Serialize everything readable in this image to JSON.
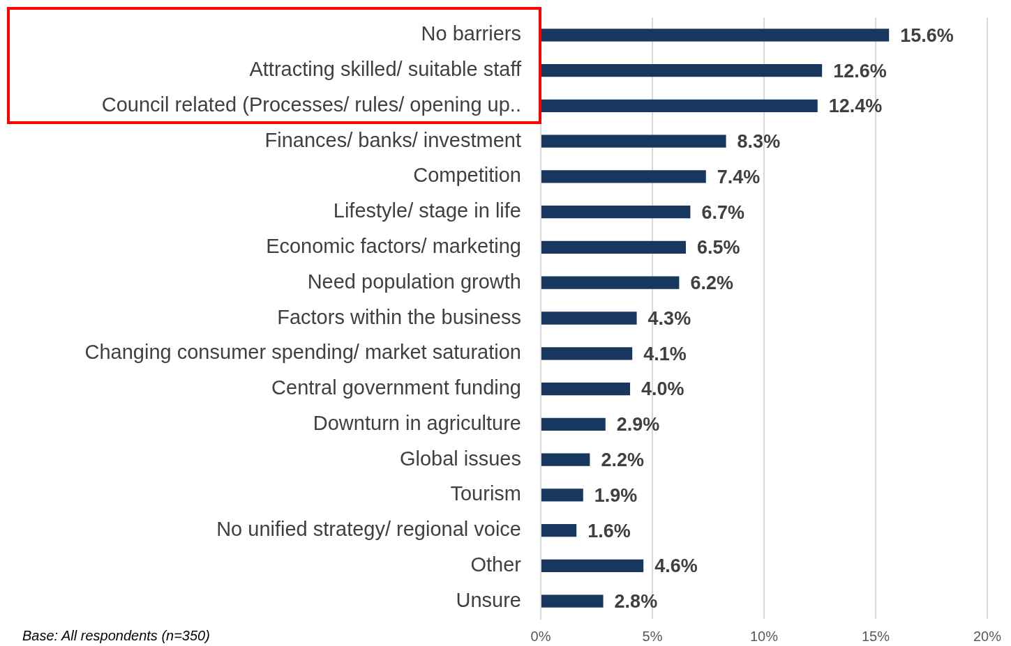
{
  "chart_data": {
    "type": "bar",
    "orientation": "horizontal",
    "categories": [
      "No barriers",
      "Attracting skilled/ suitable staff",
      "Council related (Processes/ rules/ opening up..",
      "Finances/ banks/ investment",
      "Competition",
      "Lifestyle/ stage in life",
      "Economic factors/ marketing",
      "Need population growth",
      "Factors within the business",
      "Changing consumer spending/ market saturation",
      "Central government funding",
      "Downturn in agriculture",
      "Global issues",
      "Tourism",
      "No unified strategy/ regional voice",
      "Other",
      "Unsure"
    ],
    "values": [
      15.6,
      12.6,
      12.4,
      8.3,
      7.4,
      6.7,
      6.5,
      6.2,
      4.3,
      4.1,
      4.0,
      2.9,
      2.2,
      1.9,
      1.6,
      4.6,
      2.8
    ],
    "value_labels": [
      "15.6%",
      "12.6%",
      "12.4%",
      "8.3%",
      "7.4%",
      "6.7%",
      "6.5%",
      "6.2%",
      "4.3%",
      "4.1%",
      "4.0%",
      "2.9%",
      "2.2%",
      "1.9%",
      "1.6%",
      "4.6%",
      "2.8%"
    ],
    "color": "#17375e",
    "xlim": [
      0,
      20
    ],
    "xticks": [
      {
        "value": 0,
        "label": "0%"
      },
      {
        "value": 5,
        "label": "5%"
      },
      {
        "value": 10,
        "label": "10%"
      },
      {
        "value": 15,
        "label": "15%"
      },
      {
        "value": 20,
        "label": "20%"
      }
    ],
    "grid": "x",
    "legend": false,
    "annotations": [
      "Base: All respondents (n=350)"
    ]
  }
}
